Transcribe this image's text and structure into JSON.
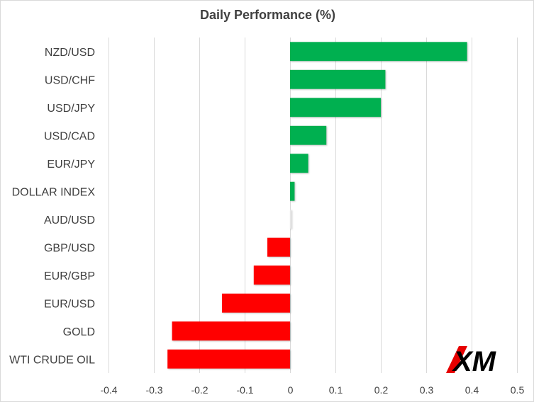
{
  "chart_data": {
    "type": "bar",
    "orientation": "horizontal",
    "title": "Daily Performance (%)",
    "categories": [
      "NZD/USD",
      "USD/CHF",
      "USD/JPY",
      "USD/CAD",
      "EUR/JPY",
      "DOLLAR INDEX",
      "AUD/USD",
      "GBP/USD",
      "EUR/GBP",
      "EUR/USD",
      "GOLD",
      "WTI CRUDE OIL"
    ],
    "values": [
      0.39,
      0.21,
      0.2,
      0.08,
      0.04,
      0.01,
      0.003,
      -0.05,
      -0.08,
      -0.15,
      -0.26,
      -0.27
    ],
    "xlim": [
      -0.4,
      0.5
    ],
    "xticks": [
      "-0.4",
      "-0.3",
      "-0.2",
      "-0.1",
      "0",
      "0.1",
      "0.2",
      "0.3",
      "0.4",
      "0.5"
    ],
    "grid": "vertical",
    "colors": {
      "positive": "#00b050",
      "negative": "#ff0000",
      "grid": "#d9d9d9",
      "text": "#404040"
    }
  },
  "logo": {
    "text": "XM",
    "color": "#000000",
    "accent": "#e60000"
  }
}
